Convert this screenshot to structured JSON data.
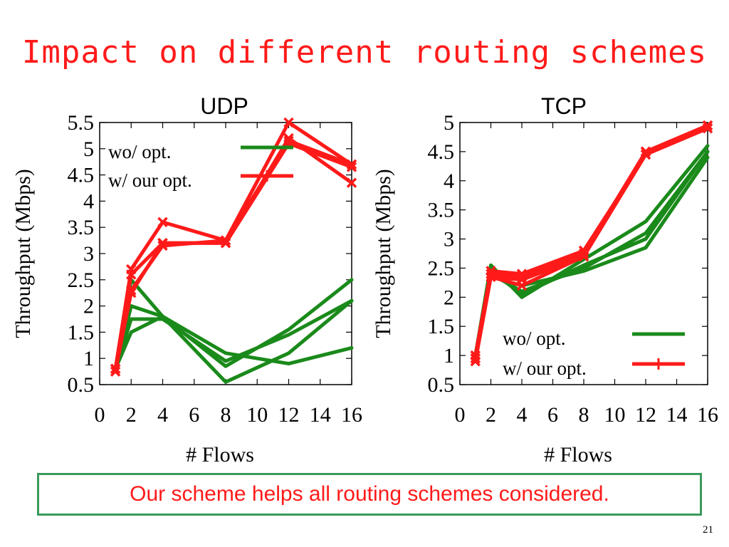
{
  "slide": {
    "title": "Impact on different routing schemes",
    "callout": "Our scheme helps all routing schemes considered.",
    "page_number": "21"
  },
  "colors": {
    "green": "#1a8a1a",
    "red": "#ff1a1a",
    "callout_border": "#3a9a5b"
  },
  "chart_data": [
    {
      "type": "line",
      "title": "UDP",
      "xlabel": "# Flows",
      "ylabel": "Throughput (Mbps)",
      "xlim": [
        0,
        16
      ],
      "ylim": [
        0.5,
        5.5
      ],
      "xticks": [
        0,
        2,
        4,
        6,
        8,
        10,
        12,
        14,
        16
      ],
      "yticks": [
        0.5,
        1,
        1.5,
        2,
        2.5,
        3,
        3.5,
        4,
        4.5,
        5,
        5.5
      ],
      "legend": {
        "position": "top-left",
        "entries": [
          "wo/ opt.",
          "w/ our opt."
        ]
      },
      "x": [
        1,
        2,
        4,
        8,
        12,
        16
      ],
      "series": [
        {
          "group": "wo/ opt.",
          "values": [
            0.8,
            2.5,
            1.8,
            0.85,
            1.55,
            2.5
          ]
        },
        {
          "group": "wo/ opt.",
          "values": [
            0.8,
            2.0,
            1.8,
            0.55,
            1.1,
            2.1
          ]
        },
        {
          "group": "wo/ opt.",
          "values": [
            0.8,
            1.5,
            1.8,
            1.1,
            0.9,
            1.2
          ]
        },
        {
          "group": "wo/ opt.",
          "values": [
            0.8,
            1.75,
            1.75,
            0.95,
            1.45,
            2.1
          ]
        },
        {
          "group": "w/ our opt.",
          "values": [
            0.8,
            2.7,
            3.6,
            3.25,
            5.5,
            4.7
          ]
        },
        {
          "group": "w/ our opt.",
          "values": [
            0.8,
            2.6,
            3.2,
            3.2,
            5.2,
            4.35
          ]
        },
        {
          "group": "w/ our opt.",
          "values": [
            0.75,
            2.3,
            3.15,
            3.25,
            5.15,
            4.7
          ]
        },
        {
          "group": "w/ our opt.",
          "values": [
            0.8,
            2.25,
            3.2,
            3.2,
            5.1,
            4.65
          ]
        }
      ]
    },
    {
      "type": "line",
      "title": "TCP",
      "xlabel": "# Flows",
      "ylabel": "Throughput (Mbps)",
      "xlim": [
        0,
        16
      ],
      "ylim": [
        0.5,
        5
      ],
      "xticks": [
        0,
        2,
        4,
        6,
        8,
        10,
        12,
        14,
        16
      ],
      "yticks": [
        0.5,
        1,
        1.5,
        2,
        2.5,
        3,
        3.5,
        4,
        4.5,
        5
      ],
      "legend": {
        "position": "bottom-right",
        "entries": [
          "wo/ opt.",
          "w/ our opt."
        ]
      },
      "x": [
        1,
        2,
        4,
        8,
        12,
        16
      ],
      "series": [
        {
          "group": "wo/ opt.",
          "values": [
            1.0,
            2.55,
            2.0,
            2.65,
            3.3,
            4.6
          ]
        },
        {
          "group": "wo/ opt.",
          "values": [
            1.0,
            2.4,
            2.1,
            2.5,
            3.1,
            4.5
          ]
        },
        {
          "group": "wo/ opt.",
          "values": [
            0.95,
            2.35,
            2.2,
            2.45,
            2.85,
            4.4
          ]
        },
        {
          "group": "wo/ opt.",
          "values": [
            0.95,
            2.45,
            2.05,
            2.55,
            3.0,
            4.5
          ]
        },
        {
          "group": "w/ our opt.",
          "values": [
            1.0,
            2.45,
            2.4,
            2.8,
            4.45,
            4.95
          ]
        },
        {
          "group": "w/ our opt.",
          "values": [
            0.95,
            2.4,
            2.35,
            2.75,
            4.5,
            4.9
          ]
        },
        {
          "group": "w/ our opt.",
          "values": [
            0.9,
            2.35,
            2.2,
            2.7,
            4.45,
            4.9
          ]
        },
        {
          "group": "w/ our opt.",
          "values": [
            0.95,
            2.35,
            2.3,
            2.7,
            4.5,
            4.95
          ]
        }
      ]
    }
  ]
}
